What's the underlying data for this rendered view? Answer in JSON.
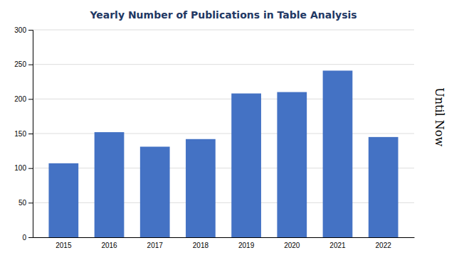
{
  "chart_data": {
    "type": "bar",
    "title": "Yearly Number of Publications in Table Analysis",
    "categories": [
      "2015",
      "2016",
      "2017",
      "2018",
      "2019",
      "2020",
      "2021",
      "2022"
    ],
    "values": [
      107,
      152,
      131,
      142,
      208,
      210,
      241,
      145
    ],
    "color": "#4472C4",
    "ylim": [
      0,
      300
    ],
    "yticks": [
      0,
      50,
      100,
      150,
      200,
      250,
      300
    ],
    "grid": true,
    "annotation": "Until Now"
  }
}
